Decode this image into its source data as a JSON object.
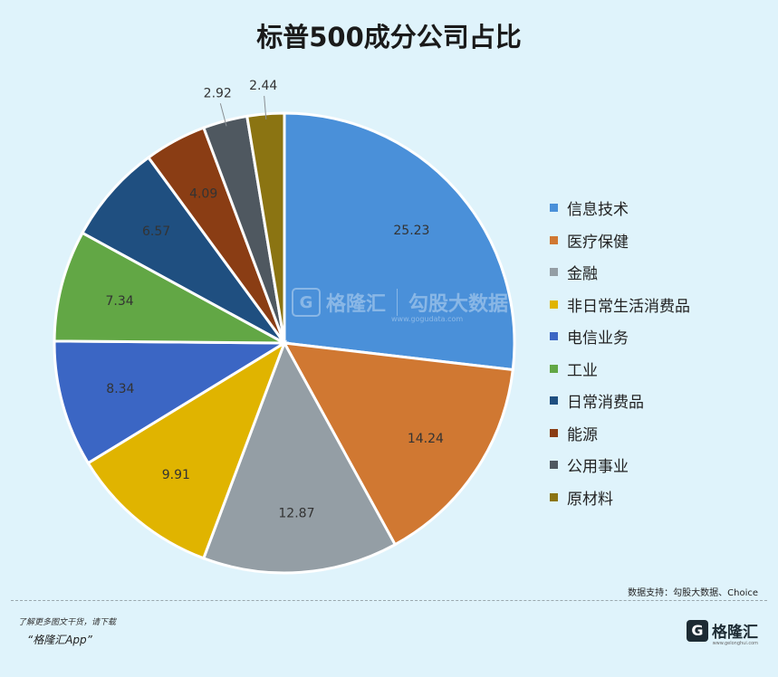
{
  "chart_data": {
    "type": "pie",
    "title": "标普500成分公司占比",
    "series": [
      {
        "name": "信息技术",
        "value": 25.23,
        "label": "25.23",
        "color": "#4a90d9"
      },
      {
        "name": "医疗保健",
        "value": 14.24,
        "label": "14.24",
        "color": "#d07832"
      },
      {
        "name": "金融",
        "value": 12.87,
        "label": "12.87",
        "color": "#949ea5"
      },
      {
        "name": "非日常生活消费品",
        "value": 9.91,
        "label": "9.91",
        "color": "#e0b400"
      },
      {
        "name": "电信业务",
        "value": 8.34,
        "label": "8.34",
        "color": "#3b66c4"
      },
      {
        "name": "工业",
        "value": 7.34,
        "label": "7.34",
        "color": "#62a745"
      },
      {
        "name": "日常消费品",
        "value": 6.57,
        "label": "6.57",
        "color": "#1f4f80"
      },
      {
        "name": "能源",
        "value": 4.09,
        "label": "4.09",
        "color": "#8a3d14"
      },
      {
        "name": "公用事业",
        "value": 2.92,
        "label": "2.92",
        "color": "#4f5860"
      },
      {
        "name": "原材料",
        "value": 2.44,
        "label": "2.44",
        "color": "#8b7412"
      }
    ],
    "legend_position": "right"
  },
  "source": "数据支持：勾股大数据、Choice",
  "watermark": {
    "brand": "格隆汇",
    "partner": "勾股大数据",
    "url": "www.gogudata.com"
  },
  "footer": {
    "note": "了解更多图文干货，请下载",
    "app": "“格隆汇App”",
    "logo_letter": "G",
    "logo_text": "格隆汇",
    "logo_url": "www.gelonghui.com"
  }
}
